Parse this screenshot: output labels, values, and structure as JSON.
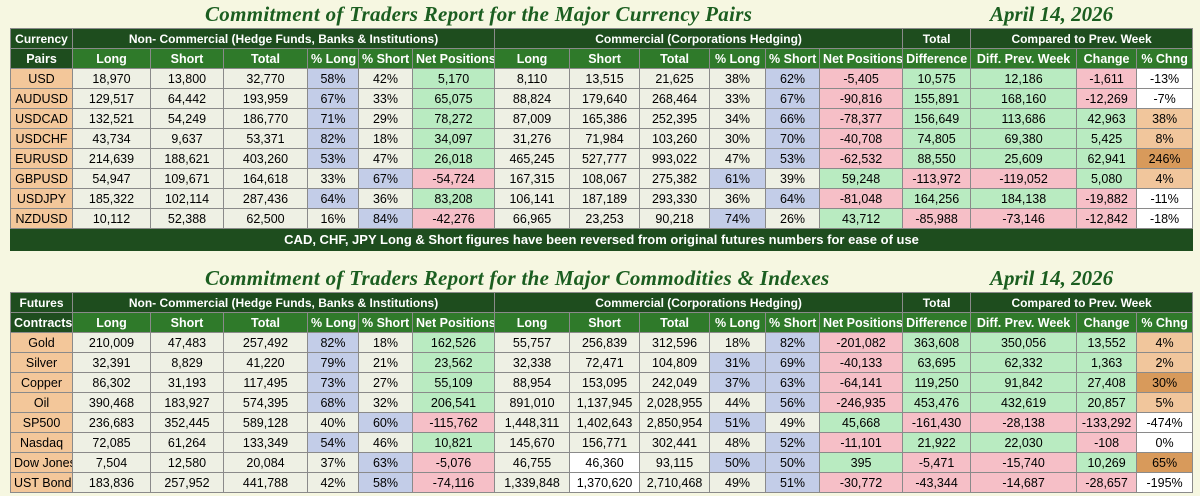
{
  "currency_report": {
    "title": "Commitment of Traders Report for the Major Currency Pairs",
    "date": "April 14, 2026",
    "first_col_header": [
      "Currency",
      "Pairs"
    ],
    "group_headers": {
      "non_commercial": "Non- Commercial (Hedge Funds, Banks & Institutions)",
      "commercial": "Commercial (Corporations Hedging)",
      "total": "Total",
      "compared": "Compared to Prev. Week"
    },
    "column_headers": [
      "Long",
      "Short",
      "Total",
      "% Long",
      "% Short",
      "Net Positions",
      "Long",
      "Short",
      "Total",
      "% Long",
      "% Short",
      "Net Positions",
      "Difference",
      "Diff. Prev. Week",
      "Change",
      "% Chng"
    ],
    "rows": [
      [
        "USD",
        "18,970",
        "13,800",
        "32,770",
        "58%",
        "42%",
        "5,170",
        "8,110",
        "13,515",
        "21,625",
        "38%",
        "62%",
        "-5,405",
        "10,575",
        "12,186",
        "-1,611",
        "-13%"
      ],
      [
        "AUDUSD",
        "129,517",
        "64,442",
        "193,959",
        "67%",
        "33%",
        "65,075",
        "88,824",
        "179,640",
        "268,464",
        "33%",
        "67%",
        "-90,816",
        "155,891",
        "168,160",
        "-12,269",
        "-7%"
      ],
      [
        "USDCAD",
        "132,521",
        "54,249",
        "186,770",
        "71%",
        "29%",
        "78,272",
        "87,009",
        "165,386",
        "252,395",
        "34%",
        "66%",
        "-78,377",
        "156,649",
        "113,686",
        "42,963",
        "38%"
      ],
      [
        "USDCHF",
        "43,734",
        "9,637",
        "53,371",
        "82%",
        "18%",
        "34,097",
        "31,276",
        "71,984",
        "103,260",
        "30%",
        "70%",
        "-40,708",
        "74,805",
        "69,380",
        "5,425",
        "8%"
      ],
      [
        "EURUSD",
        "214,639",
        "188,621",
        "403,260",
        "53%",
        "47%",
        "26,018",
        "465,245",
        "527,777",
        "993,022",
        "47%",
        "53%",
        "-62,532",
        "88,550",
        "25,609",
        "62,941",
        "246%"
      ],
      [
        "GBPUSD",
        "54,947",
        "109,671",
        "164,618",
        "33%",
        "67%",
        "-54,724",
        "167,315",
        "108,067",
        "275,382",
        "61%",
        "39%",
        "59,248",
        "-113,972",
        "-119,052",
        "5,080",
        "4%"
      ],
      [
        "USDJPY",
        "185,322",
        "102,114",
        "287,436",
        "64%",
        "36%",
        "83,208",
        "106,141",
        "187,189",
        "293,330",
        "36%",
        "64%",
        "-81,048",
        "164,256",
        "184,138",
        "-19,882",
        "-11%"
      ],
      [
        "NZDUSD",
        "10,112",
        "52,388",
        "62,500",
        "16%",
        "84%",
        "-42,276",
        "66,965",
        "23,253",
        "90,218",
        "74%",
        "26%",
        "43,712",
        "-85,988",
        "-73,146",
        "-12,842",
        "-18%"
      ]
    ],
    "colors": [
      [
        "c-plain",
        "c-plain",
        "c-plain",
        "c-blue",
        "c-plain",
        "c-green",
        "c-plain",
        "c-plain",
        "c-plain",
        "c-plain",
        "c-blue",
        "c-red",
        "c-green",
        "c-green",
        "c-red",
        "c-white"
      ],
      [
        "c-plain",
        "c-plain",
        "c-plain",
        "c-blue",
        "c-plain",
        "c-green",
        "c-plain",
        "c-plain",
        "c-plain",
        "c-plain",
        "c-blue",
        "c-red",
        "c-green",
        "c-green",
        "c-red",
        "c-white"
      ],
      [
        "c-plain",
        "c-plain",
        "c-plain",
        "c-blue",
        "c-plain",
        "c-green",
        "c-plain",
        "c-plain",
        "c-plain",
        "c-plain",
        "c-blue",
        "c-red",
        "c-green",
        "c-green",
        "c-green",
        "c-orange"
      ],
      [
        "c-plain",
        "c-plain",
        "c-plain",
        "c-blue",
        "c-plain",
        "c-green",
        "c-plain",
        "c-plain",
        "c-plain",
        "c-plain",
        "c-blue",
        "c-red",
        "c-green",
        "c-green",
        "c-green",
        "c-orange"
      ],
      [
        "c-plain",
        "c-plain",
        "c-plain",
        "c-blue",
        "c-plain",
        "c-green",
        "c-plain",
        "c-plain",
        "c-plain",
        "c-plain",
        "c-blue",
        "c-red",
        "c-green",
        "c-green",
        "c-green",
        "c-orange-dk"
      ],
      [
        "c-plain",
        "c-plain",
        "c-plain",
        "c-plain",
        "c-blue",
        "c-red",
        "c-plain",
        "c-plain",
        "c-plain",
        "c-blue",
        "c-plain",
        "c-green",
        "c-red",
        "c-red",
        "c-green",
        "c-orange"
      ],
      [
        "c-plain",
        "c-plain",
        "c-plain",
        "c-blue",
        "c-plain",
        "c-green",
        "c-plain",
        "c-plain",
        "c-plain",
        "c-plain",
        "c-blue",
        "c-red",
        "c-green",
        "c-green",
        "c-red",
        "c-white"
      ],
      [
        "c-plain",
        "c-plain",
        "c-plain",
        "c-plain",
        "c-blue",
        "c-red",
        "c-plain",
        "c-plain",
        "c-plain",
        "c-blue",
        "c-plain",
        "c-green",
        "c-red",
        "c-red",
        "c-red",
        "c-white"
      ]
    ],
    "note": "CAD, CHF, JPY Long & Short figures have been reversed from original futures numbers for ease of use"
  },
  "commodity_report": {
    "title": "Commitment of Traders Report for the Major Commodities & Indexes",
    "date": "April 14, 2026",
    "first_col_header": [
      "Futures",
      "Contracts"
    ],
    "group_headers": {
      "non_commercial": "Non- Commercial (Hedge Funds, Banks & Institutions)",
      "commercial": "Commercial (Corporations Hedging)",
      "total": "Total",
      "compared": "Compared to Prev. Week"
    },
    "column_headers": [
      "Long",
      "Short",
      "Total",
      "% Long",
      "% Short",
      "Net Positions",
      "Long",
      "Short",
      "Total",
      "% Long",
      "% Short",
      "Net Positions",
      "Difference",
      "Diff. Prev. Week",
      "Change",
      "% Chng"
    ],
    "rows": [
      [
        "Gold",
        "210,009",
        "47,483",
        "257,492",
        "82%",
        "18%",
        "162,526",
        "55,757",
        "256,839",
        "312,596",
        "18%",
        "82%",
        "-201,082",
        "363,608",
        "350,056",
        "13,552",
        "4%"
      ],
      [
        "Silver",
        "32,391",
        "8,829",
        "41,220",
        "79%",
        "21%",
        "23,562",
        "32,338",
        "72,471",
        "104,809",
        "31%",
        "69%",
        "-40,133",
        "63,695",
        "62,332",
        "1,363",
        "2%"
      ],
      [
        "Copper",
        "86,302",
        "31,193",
        "117,495",
        "73%",
        "27%",
        "55,109",
        "88,954",
        "153,095",
        "242,049",
        "37%",
        "63%",
        "-64,141",
        "119,250",
        "91,842",
        "27,408",
        "30%"
      ],
      [
        "Oil",
        "390,468",
        "183,927",
        "574,395",
        "68%",
        "32%",
        "206,541",
        "891,010",
        "1,137,945",
        "2,028,955",
        "44%",
        "56%",
        "-246,935",
        "453,476",
        "432,619",
        "20,857",
        "5%"
      ],
      [
        "SP500",
        "236,683",
        "352,445",
        "589,128",
        "40%",
        "60%",
        "-115,762",
        "1,448,311",
        "1,402,643",
        "2,850,954",
        "51%",
        "49%",
        "45,668",
        "-161,430",
        "-28,138",
        "-133,292",
        "-474%"
      ],
      [
        "Nasdaq",
        "72,085",
        "61,264",
        "133,349",
        "54%",
        "46%",
        "10,821",
        "145,670",
        "156,771",
        "302,441",
        "48%",
        "52%",
        "-11,101",
        "21,922",
        "22,030",
        "-108",
        "0%"
      ],
      [
        "Dow Jones",
        "7,504",
        "12,580",
        "20,084",
        "37%",
        "63%",
        "-5,076",
        "46,755",
        "46,360",
        "93,115",
        "50%",
        "50%",
        "395",
        "-5,471",
        "-15,740",
        "10,269",
        "65%"
      ],
      [
        "UST Bond",
        "183,836",
        "257,952",
        "441,788",
        "42%",
        "58%",
        "-74,116",
        "1,339,848",
        "1,370,620",
        "2,710,468",
        "49%",
        "51%",
        "-30,772",
        "-43,344",
        "-14,687",
        "-28,657",
        "-195%"
      ]
    ],
    "colors": [
      [
        "c-plain",
        "c-plain",
        "c-plain",
        "c-blue",
        "c-plain",
        "c-green",
        "c-plain",
        "c-plain",
        "c-plain",
        "c-plain",
        "c-blue",
        "c-red",
        "c-green",
        "c-green",
        "c-green",
        "c-orange"
      ],
      [
        "c-plain",
        "c-plain",
        "c-plain",
        "c-blue",
        "c-plain",
        "c-green",
        "c-plain",
        "c-plain",
        "c-plain",
        "c-blue",
        "c-blue",
        "c-red",
        "c-green",
        "c-green",
        "c-green",
        "c-orange"
      ],
      [
        "c-plain",
        "c-plain",
        "c-plain",
        "c-blue",
        "c-plain",
        "c-green",
        "c-plain",
        "c-plain",
        "c-plain",
        "c-blue",
        "c-blue",
        "c-red",
        "c-green",
        "c-green",
        "c-green",
        "c-orange-dk"
      ],
      [
        "c-plain",
        "c-plain",
        "c-plain",
        "c-blue",
        "c-plain",
        "c-green",
        "c-plain",
        "c-plain",
        "c-plain",
        "c-plain",
        "c-blue",
        "c-red",
        "c-green",
        "c-green",
        "c-green",
        "c-orange"
      ],
      [
        "c-plain",
        "c-plain",
        "c-plain",
        "c-plain",
        "c-blue",
        "c-red",
        "c-plain",
        "c-plain",
        "c-plain",
        "c-blue",
        "c-plain",
        "c-green",
        "c-red",
        "c-red",
        "c-red",
        "c-white"
      ],
      [
        "c-plain",
        "c-plain",
        "c-plain",
        "c-blue",
        "c-plain",
        "c-green",
        "c-plain",
        "c-plain",
        "c-plain",
        "c-plain",
        "c-blue",
        "c-red",
        "c-green",
        "c-green",
        "c-red",
        "c-white"
      ],
      [
        "c-plain",
        "c-plain",
        "c-plain",
        "c-plain",
        "c-blue",
        "c-red",
        "c-plain",
        "c-white",
        "c-plain",
        "c-blue",
        "c-blue",
        "c-green",
        "c-red",
        "c-red",
        "c-green",
        "c-orange-dk"
      ],
      [
        "c-plain",
        "c-plain",
        "c-plain",
        "c-plain",
        "c-blue",
        "c-red",
        "c-plain",
        "c-white",
        "c-plain",
        "c-plain",
        "c-blue",
        "c-red",
        "c-red",
        "c-red",
        "c-red",
        "c-white"
      ]
    ]
  }
}
